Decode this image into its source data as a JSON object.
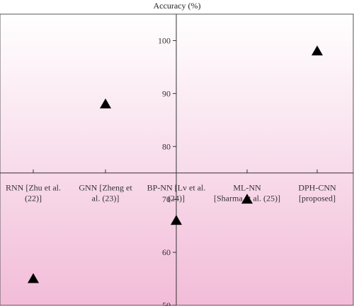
{
  "chart_data": {
    "type": "scatter",
    "title": "Accuracy (%)",
    "xlabel": "",
    "ylabel": "Accuracy (%)",
    "marker": "triangle",
    "categories": [
      [
        "RNN [Zhu et al.",
        "(22)]"
      ],
      [
        "GNN [Zheng et",
        "al. (23)]"
      ],
      [
        "BP-NN [Lv et al.",
        "(24)]"
      ],
      [
        "ML-NN",
        "[Sharma et al. (25)]"
      ],
      [
        "DPH-CNN",
        "[proposed]"
      ]
    ],
    "values": [
      55,
      88,
      66,
      70,
      98
    ],
    "ylim": [
      50,
      105
    ],
    "yticks": [
      50,
      60,
      70,
      80,
      90,
      100
    ],
    "x_axis_at_y": 75,
    "grid": false,
    "colors": {
      "background_top": "#ffffff",
      "background_bottom": "#f2bcd8",
      "marker": "#000000",
      "axis": "#333333"
    }
  }
}
